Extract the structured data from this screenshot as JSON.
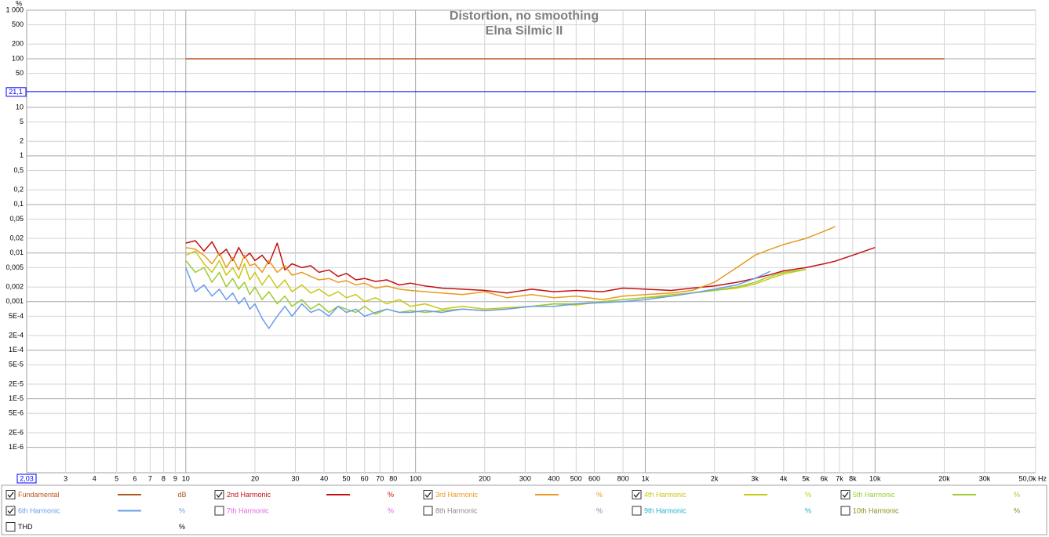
{
  "chart_data": {
    "type": "line",
    "title": "Distortion, no smoothing",
    "subtitle": "Elna Silmic II",
    "y_unit": "%",
    "xscale": "log",
    "yscale": "log",
    "grid": true,
    "xlim": [
      2.03,
      50000
    ],
    "ylim": [
      3e-07,
      1000
    ],
    "xticks": [
      3,
      4,
      5,
      6,
      7,
      8,
      9,
      10,
      20,
      30,
      40,
      50,
      60,
      70,
      80,
      100,
      200,
      300,
      400,
      500,
      600,
      800,
      {
        "value": 1000,
        "label": "1k"
      },
      {
        "value": 2000,
        "label": "2k"
      },
      {
        "value": 3000,
        "label": "3k"
      },
      {
        "value": 4000,
        "label": "4k"
      },
      {
        "value": 5000,
        "label": "5k"
      },
      {
        "value": 6000,
        "label": "6k"
      },
      {
        "value": 7000,
        "label": "7k"
      },
      {
        "value": 8000,
        "label": "8k"
      },
      {
        "value": 10000,
        "label": "10k"
      },
      {
        "value": 20000,
        "label": "20k"
      },
      {
        "value": 30000,
        "label": "30k"
      },
      {
        "value": 50000,
        "label": "50,0k Hz"
      }
    ],
    "yticks": [
      {
        "value": 1000,
        "label": "1 000"
      },
      500,
      200,
      100,
      50,
      10,
      5,
      2,
      1,
      {
        "value": 0.5,
        "label": "0,5"
      },
      {
        "value": 0.2,
        "label": "0,2"
      },
      {
        "value": 0.1,
        "label": "0,1"
      },
      {
        "value": 0.05,
        "label": "0,05"
      },
      {
        "value": 0.02,
        "label": "0,02"
      },
      {
        "value": 0.01,
        "label": "0,01"
      },
      {
        "value": 0.005,
        "label": "0,005"
      },
      {
        "value": 0.002,
        "label": "0,002"
      },
      {
        "value": 0.001,
        "label": "0,001"
      },
      {
        "value": 0.0005,
        "label": "5E-4"
      },
      {
        "value": 0.0002,
        "label": "2E-4"
      },
      {
        "value": 0.0001,
        "label": "1E-4"
      },
      {
        "value": 5e-05,
        "label": "5E-5"
      },
      {
        "value": 2e-05,
        "label": "2E-5"
      },
      {
        "value": 1e-05,
        "label": "1E-5"
      },
      {
        "value": 5e-06,
        "label": "5E-6"
      },
      {
        "value": 2e-06,
        "label": "2E-6"
      },
      {
        "value": 1e-06,
        "label": "1E-6"
      }
    ],
    "cursor": {
      "y": {
        "value": 21.1,
        "label": "21,1"
      },
      "x": {
        "value": 2.03,
        "label": "2,03"
      },
      "color": "#0000ff"
    },
    "x": [
      10,
      11,
      12,
      13,
      14,
      15,
      16,
      17,
      18,
      19,
      20,
      21.5,
      23,
      25,
      27,
      29,
      32,
      35,
      38,
      42,
      46,
      50,
      55,
      60,
      67,
      75,
      85,
      95,
      110,
      130,
      160,
      200,
      250,
      320,
      400,
      500,
      650,
      800,
      1000,
      1300,
      1600,
      2000,
      2500,
      3000,
      3500,
      4000,
      5000,
      6000,
      6700,
      8000,
      10000,
      20000
    ],
    "series": [
      {
        "name": "Fundamental",
        "unit": "dB",
        "checked": true,
        "color": "#b5561f",
        "values": [
          100,
          100,
          100,
          100,
          100,
          100,
          100,
          100,
          100,
          100,
          100,
          100,
          100,
          100,
          100,
          100,
          100,
          100,
          100,
          100,
          100,
          100,
          100,
          100,
          100,
          100,
          100,
          100,
          100,
          100,
          100,
          100,
          100,
          100,
          100,
          100,
          100,
          100,
          100,
          100,
          100,
          100,
          100,
          100,
          100,
          100,
          100,
          100,
          100,
          100,
          100,
          100
        ]
      },
      {
        "name": "2nd Harmonic",
        "unit": "%",
        "checked": true,
        "color": "#c41010",
        "values": [
          0.016,
          0.018,
          0.011,
          0.017,
          0.009,
          0.012,
          0.007,
          0.013,
          0.008,
          0.01,
          0.007,
          0.009,
          0.006,
          0.016,
          0.0045,
          0.006,
          0.005,
          0.0055,
          0.004,
          0.0045,
          0.0033,
          0.0038,
          0.0028,
          0.003,
          0.0026,
          0.0028,
          0.0022,
          0.0024,
          0.0021,
          0.0019,
          0.0018,
          0.0017,
          0.0015,
          0.0018,
          0.0016,
          0.0017,
          0.0016,
          0.0019,
          0.0018,
          0.0017,
          0.0019,
          0.0021,
          0.0025,
          0.003,
          0.0036,
          0.0043,
          0.005,
          0.006,
          0.0068,
          0.009,
          0.013,
          null
        ]
      },
      {
        "name": "3rd Harmonic",
        "unit": "%",
        "checked": true,
        "color": "#e99a1e",
        "values": [
          0.013,
          0.012,
          0.009,
          0.006,
          0.01,
          0.005,
          0.008,
          0.0045,
          0.009,
          0.0055,
          0.006,
          0.004,
          0.007,
          0.004,
          0.0055,
          0.0035,
          0.004,
          0.0033,
          0.0028,
          0.003,
          0.0025,
          0.0027,
          0.0022,
          0.0024,
          0.0019,
          0.0021,
          0.0018,
          0.0017,
          0.0016,
          0.0015,
          0.0014,
          0.0016,
          0.0012,
          0.0014,
          0.0012,
          0.0013,
          0.0011,
          0.0013,
          0.0014,
          0.0015,
          0.0017,
          0.0025,
          0.005,
          0.009,
          0.012,
          0.015,
          0.02,
          0.028,
          0.035,
          null,
          null,
          null
        ]
      },
      {
        "name": "4th Harmonic",
        "unit": "%",
        "checked": true,
        "color": "#c8c814",
        "values": [
          0.009,
          0.011,
          0.006,
          0.004,
          0.007,
          0.0035,
          0.005,
          0.003,
          0.006,
          0.0028,
          0.004,
          0.0022,
          0.0035,
          0.0019,
          0.0028,
          0.0016,
          0.0022,
          0.0015,
          0.0018,
          0.0013,
          0.0016,
          0.0012,
          0.0014,
          0.001,
          0.0012,
          0.0009,
          0.0011,
          0.0008,
          0.0009,
          0.0007,
          0.0008,
          0.0007,
          0.00075,
          0.0008,
          0.0009,
          0.00085,
          0.001,
          0.0011,
          0.0012,
          0.0014,
          0.0015,
          0.0017,
          0.0019,
          0.0023,
          0.003,
          0.0037,
          0.0046,
          null,
          null,
          null,
          null,
          null
        ]
      },
      {
        "name": "5th Harmonic",
        "unit": "%",
        "checked": true,
        "color": "#9ccc34",
        "values": [
          0.007,
          0.004,
          0.005,
          0.0025,
          0.004,
          0.002,
          0.003,
          0.0018,
          0.0025,
          0.0014,
          0.002,
          0.0011,
          0.0016,
          0.0009,
          0.0013,
          0.0008,
          0.0011,
          0.0007,
          0.0009,
          0.0006,
          0.0008,
          0.0007,
          0.0006,
          0.0008,
          0.00055,
          0.0007,
          0.0006,
          0.00065,
          0.0006,
          0.00065,
          0.0007,
          0.00065,
          0.0007,
          0.0008,
          0.0009,
          0.0009,
          0.001,
          0.0011,
          0.0012,
          0.0013,
          0.0015,
          0.0017,
          0.002,
          0.0025,
          0.0033,
          0.004,
          0.0046,
          null,
          null,
          null,
          null,
          null
        ]
      },
      {
        "name": "6th Harmonic",
        "unit": "%",
        "checked": true,
        "color": "#6a9cec",
        "values": [
          0.005,
          0.0016,
          0.0022,
          0.0013,
          0.0018,
          0.0011,
          0.0015,
          0.0009,
          0.0012,
          0.0007,
          0.0009,
          0.00045,
          0.00028,
          0.0005,
          0.0008,
          0.0005,
          0.0009,
          0.0006,
          0.0007,
          0.0005,
          0.0008,
          0.0006,
          0.0007,
          0.0005,
          0.0006,
          0.0007,
          0.0006,
          0.0006,
          0.00065,
          0.0006,
          0.0007,
          0.00065,
          0.0007,
          0.0008,
          0.0008,
          0.0009,
          0.00095,
          0.001,
          0.0011,
          0.0013,
          0.0015,
          0.0018,
          0.0022,
          0.003,
          0.0042,
          null,
          null,
          null,
          null,
          null,
          null,
          null
        ]
      }
    ],
    "hidden_series": [
      {
        "name": "7th Harmonic",
        "unit": "%",
        "checked": false,
        "color": "#e066e0"
      },
      {
        "name": "8th Harmonic",
        "unit": "%",
        "checked": false,
        "color": "#8c8c8c"
      },
      {
        "name": "9th Harmonic",
        "unit": "%",
        "checked": false,
        "color": "#1eb4c8"
      },
      {
        "name": "10th Harmonic",
        "unit": "%",
        "checked": false,
        "color": "#8c8c14"
      },
      {
        "name": "THD",
        "unit": "%",
        "checked": false,
        "color": "#000000"
      }
    ]
  }
}
